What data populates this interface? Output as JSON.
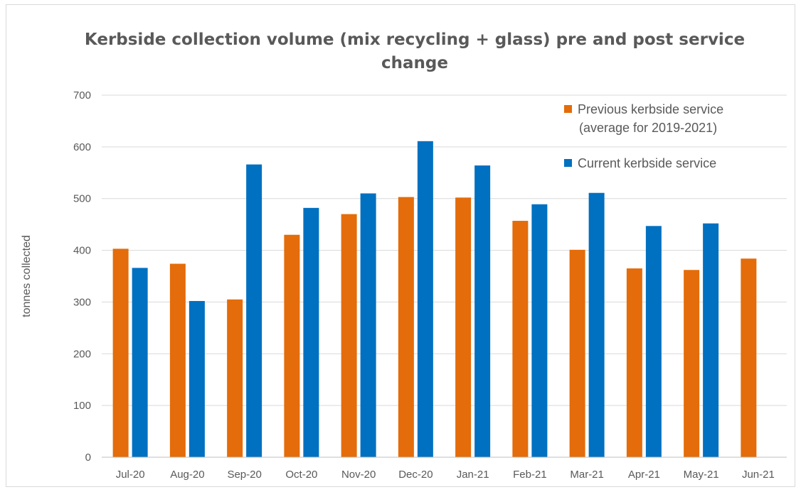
{
  "chart_data": {
    "type": "bar",
    "title_lines": [
      "Kerbside collection volume (mix recycling + glass) pre and post service",
      "change"
    ],
    "xlabel": "",
    "ylabel": "tonnes collected",
    "ylim": [
      0,
      700
    ],
    "yticks": [
      0,
      100,
      200,
      300,
      400,
      500,
      600,
      700
    ],
    "grid": true,
    "legend_position": "top-right",
    "categories": [
      "Jul-20",
      "Aug-20",
      "Sep-20",
      "Oct-20",
      "Nov-20",
      "Dec-20",
      "Jan-21",
      "Feb-21",
      "Mar-21",
      "Apr-21",
      "May-21",
      "Jun-21"
    ],
    "series": [
      {
        "name_lines": [
          "Previous kerbside service",
          "(average for 2019-2021)"
        ],
        "color": "#E46C0A",
        "values": [
          403,
          374,
          305,
          430,
          470,
          503,
          502,
          457,
          401,
          365,
          362,
          384
        ]
      },
      {
        "name_lines": [
          "Current kerbside service"
        ],
        "color": "#0070C0",
        "values": [
          366,
          302,
          566,
          482,
          510,
          611,
          564,
          489,
          511,
          447,
          452,
          null
        ]
      }
    ]
  }
}
